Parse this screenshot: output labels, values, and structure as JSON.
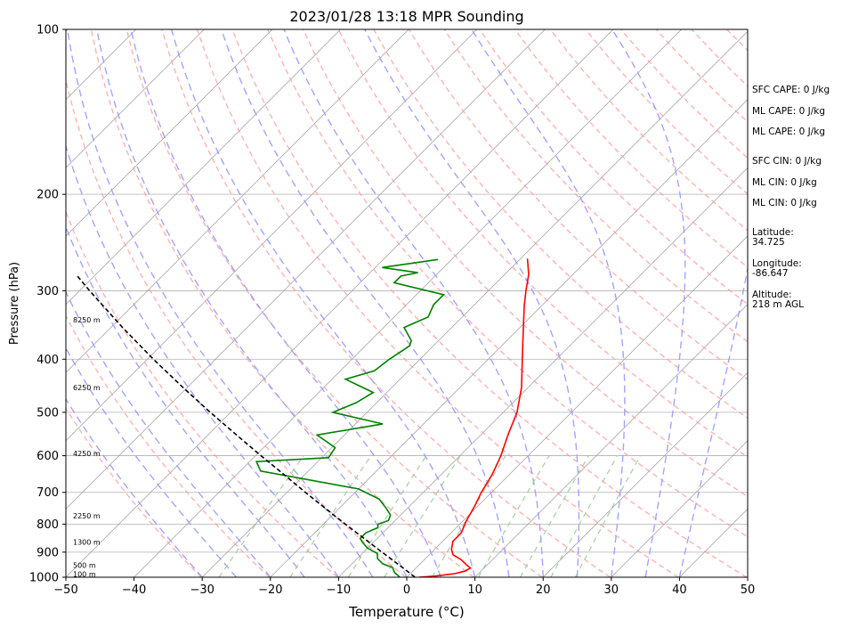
{
  "chart_data": {
    "type": "skew-t",
    "title": "2023/01/28 13:18 MPR Sounding",
    "xlabel": "Temperature (°C)",
    "ylabel": "Pressure (hPa)",
    "xlim": [
      -50,
      50
    ],
    "ylim": [
      1000,
      100
    ],
    "y_scale": "log",
    "x_ticks": [
      -50,
      -40,
      -30,
      -20,
      -10,
      0,
      10,
      20,
      30,
      40,
      50
    ],
    "x_tick_labels": [
      "−50",
      "−40",
      "−30",
      "−20",
      "−10",
      "0",
      "10",
      "20",
      "30",
      "40",
      "50"
    ],
    "y_ticks": [
      100,
      200,
      300,
      400,
      500,
      600,
      700,
      800,
      900,
      1000
    ],
    "grid": true,
    "colors": {
      "temperature": "#ff0000",
      "dewpoint": "#008000",
      "parcel": "#000000",
      "dry_adiabats": "#ff9999",
      "moist_adiabats": "#9999ff",
      "mixing_ratio": "#99cc99",
      "isotherms": "#999999"
    },
    "height_labels": [
      {
        "p": 990,
        "label": "100 m"
      },
      {
        "p": 954,
        "label": "500 m"
      },
      {
        "p": 865,
        "label": "1300 m"
      },
      {
        "p": 775,
        "label": "2250 m"
      },
      {
        "p": 597,
        "label": "4250 m"
      },
      {
        "p": 452,
        "label": "6250 m"
      },
      {
        "p": 340,
        "label": "8250 m"
      }
    ],
    "series": [
      {
        "name": "",
        "role": "temperature",
        "points": [
          [
            1000,
            1.8
          ],
          [
            995,
            4.0
          ],
          [
            985,
            6.5
          ],
          [
            975,
            7.6
          ],
          [
            962,
            8.0
          ],
          [
            950,
            7.0
          ],
          [
            930,
            5.5
          ],
          [
            910,
            3.5
          ],
          [
            890,
            2.5
          ],
          [
            860,
            1.5
          ],
          [
            830,
            1.5
          ],
          [
            790,
            0.5
          ],
          [
            740,
            -0.5
          ],
          [
            700,
            -1.5
          ],
          [
            650,
            -2.5
          ],
          [
            600,
            -4.0
          ],
          [
            550,
            -6.0
          ],
          [
            500,
            -8.0
          ],
          [
            450,
            -11.0
          ],
          [
            400,
            -15.0
          ],
          [
            350,
            -19.5
          ],
          [
            320,
            -22.5
          ],
          [
            300,
            -24.5
          ],
          [
            280,
            -26.5
          ],
          [
            262,
            -29.0
          ]
        ]
      },
      {
        "name": "",
        "role": "dewpoint",
        "points": [
          [
            1000,
            -1.0
          ],
          [
            980,
            -2.5
          ],
          [
            960,
            -3.5
          ],
          [
            945,
            -5.5
          ],
          [
            925,
            -7.0
          ],
          [
            905,
            -7.8
          ],
          [
            885,
            -10.0
          ],
          [
            865,
            -11.5
          ],
          [
            850,
            -12.5
          ],
          [
            830,
            -12.5
          ],
          [
            812,
            -11.5
          ],
          [
            800,
            -12.0
          ],
          [
            788,
            -11.0
          ],
          [
            770,
            -11.5
          ],
          [
            750,
            -13.0
          ],
          [
            720,
            -15.5
          ],
          [
            690,
            -20.0
          ],
          [
            640,
            -37.0
          ],
          [
            615,
            -39.0
          ],
          [
            605,
            -29.0
          ],
          [
            580,
            -29.5
          ],
          [
            550,
            -34.0
          ],
          [
            525,
            -26.0
          ],
          [
            500,
            -35.0
          ],
          [
            480,
            -33.0
          ],
          [
            460,
            -32.0
          ],
          [
            435,
            -38.0
          ],
          [
            420,
            -35.0
          ],
          [
            400,
            -34.5
          ],
          [
            378,
            -33.5
          ],
          [
            370,
            -34.0
          ],
          [
            350,
            -37.0
          ],
          [
            335,
            -35.0
          ],
          [
            318,
            -36.0
          ],
          [
            305,
            -36.0
          ],
          [
            290,
            -45.0
          ],
          [
            282,
            -45.0
          ],
          [
            278,
            -43.0
          ],
          [
            272,
            -49.0
          ],
          [
            263,
            -42.0
          ]
        ]
      },
      {
        "name": "",
        "role": "parcel",
        "points": [
          [
            1000,
            1.2
          ],
          [
            970,
            -1.2
          ],
          [
            950,
            -2.9
          ],
          [
            900,
            -7.3
          ],
          [
            850,
            -11.9
          ],
          [
            800,
            -16.8
          ],
          [
            750,
            -21.9
          ],
          [
            700,
            -27.3
          ],
          [
            650,
            -33.0
          ],
          [
            600,
            -39.2
          ],
          [
            550,
            -45.8
          ],
          [
            500,
            -53.0
          ],
          [
            450,
            -60.7
          ],
          [
            400,
            -69.1
          ],
          [
            350,
            -78.3
          ],
          [
            300,
            -88.5
          ],
          [
            280,
            -92.9
          ]
        ]
      }
    ],
    "indices": [
      "SFC CAPE: 0 J/kg",
      "ML CAPE: 0 J/kg",
      "ML CAPE: 0 J/kg",
      "SFC CIN: 0 J/kg",
      "ML CIN: 0 J/kg",
      "ML CIN: 0 J/kg"
    ],
    "location": [
      {
        "label": "Latitude:",
        "value": "34.725"
      },
      {
        "label": "Longitude:",
        "value": "-86.647"
      },
      {
        "label": "Altitude:",
        "value": "218 m AGL"
      }
    ]
  }
}
